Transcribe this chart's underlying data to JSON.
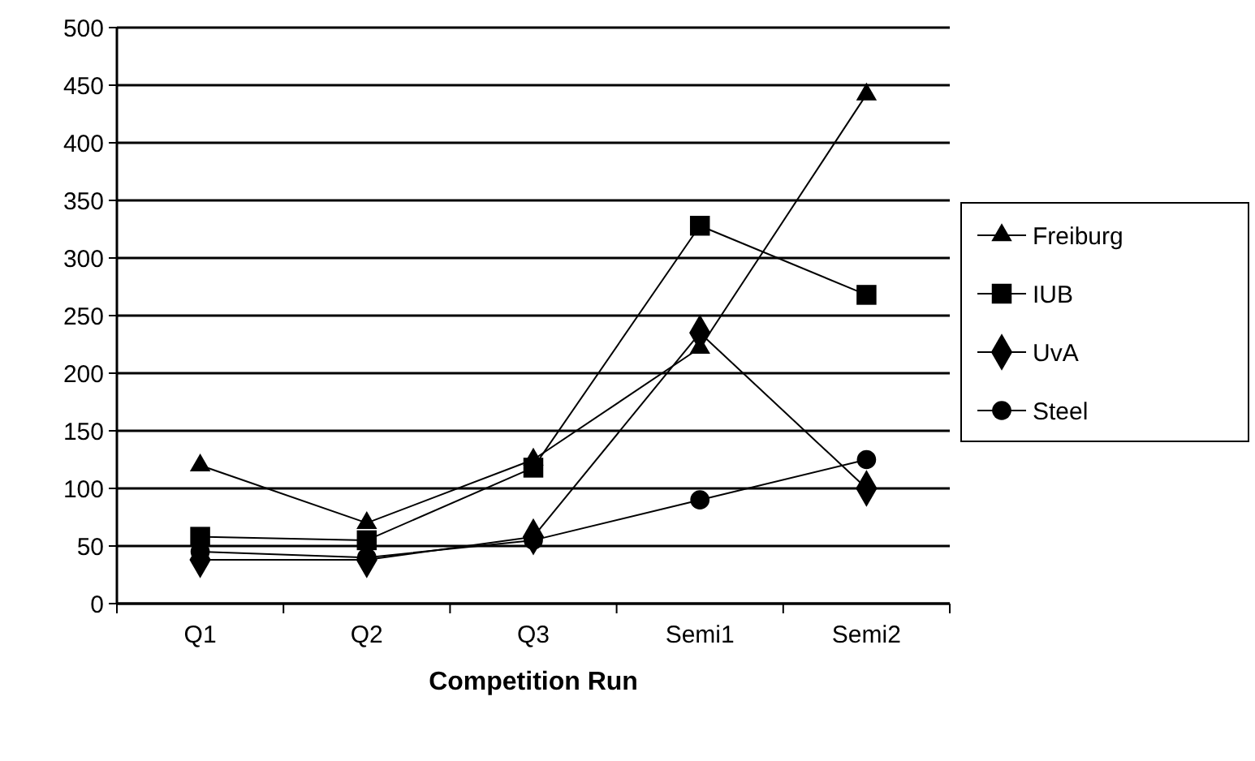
{
  "chart_data": {
    "type": "line",
    "xlabel": "Competition Run",
    "categories": [
      "Q1",
      "Q2",
      "Q3",
      "Semi1",
      "Semi2"
    ],
    "series": [
      {
        "name": "Freiburg",
        "color": "#000000",
        "marker": "triangle",
        "values": [
          120,
          70,
          125,
          222,
          442
        ]
      },
      {
        "name": "IUB",
        "color": "#000000",
        "marker": "square",
        "values": [
          58,
          55,
          118,
          328,
          268
        ]
      },
      {
        "name": "UvA",
        "color": "#000000",
        "marker": "diamond",
        "values": [
          38,
          38,
          58,
          235,
          100
        ]
      },
      {
        "name": "Steel",
        "color": "#000000",
        "marker": "circle",
        "values": [
          45,
          40,
          55,
          90,
          125
        ]
      }
    ],
    "ylim": [
      0,
      500
    ],
    "yticks": [
      0,
      50,
      100,
      150,
      200,
      250,
      300,
      350,
      400,
      450,
      500
    ],
    "grid": "y",
    "legend": "right",
    "line_style": "solid"
  }
}
